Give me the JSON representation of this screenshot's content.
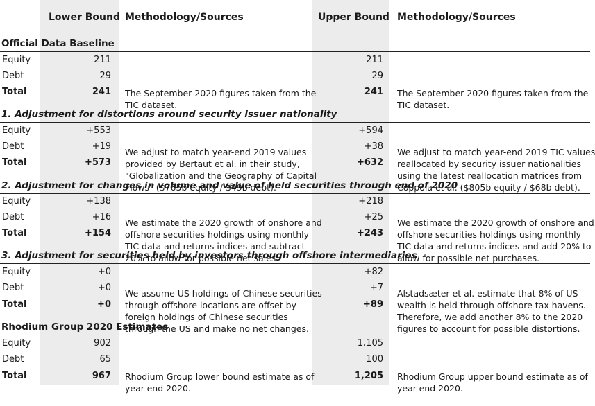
{
  "headers": {
    "lower": "Lower Bound",
    "method_left": "Methodology/Sources",
    "upper": "Upper Bound",
    "method_right": "Methodology/Sources"
  },
  "sections": [
    {
      "title": "Official Data Baseline",
      "rows": [
        {
          "label": "Equity",
          "lower": "211",
          "upper": "211"
        },
        {
          "label": "Debt",
          "lower": "29",
          "upper": "29"
        },
        {
          "label": "Total",
          "lower": "241",
          "upper": "241"
        }
      ],
      "desc_lower": [
        "The September 2020 figures taken from the",
        "TIC dataset."
      ],
      "desc_upper": [
        "The September 2020 figures taken from the",
        "TIC dataset."
      ]
    },
    {
      "title": "1. Adjustment for distortions around security issuer nationality",
      "rows": [
        {
          "label": "Equity",
          "lower": "+553",
          "upper": "+594"
        },
        {
          "label": "Debt",
          "lower": "+19",
          "upper": "+38"
        },
        {
          "label": "Total",
          "lower": "+573",
          "upper": "+632"
        }
      ],
      "desc_lower": [
        "We adjust to match year-end 2019 values",
        "provided by Bertaut et al. in their study,",
        "\"Globalization and the Geography of Capital",
        "Flows\" ($765b equity / $49b debt)."
      ],
      "desc_upper": [
        "We adjust to match year-end 2019 TIC values",
        "reallocated by security issuer nationalities",
        "using the latest reallocation matrices from",
        "Coppola et al. ($805b equity / $68b debt)."
      ]
    },
    {
      "title": "2. Adjustment for changes in volume and value of held securities through end of 2020",
      "rows": [
        {
          "label": "Equity",
          "lower": "+138",
          "upper": "+218"
        },
        {
          "label": "Debt",
          "lower": "+16",
          "upper": "+25"
        },
        {
          "label": "Total",
          "lower": "+154",
          "upper": "+243"
        }
      ],
      "desc_lower": [
        "We estimate the 2020 growth of onshore and",
        "offshore securities holdings using monthly",
        "TIC data and returns indices and subtract",
        "20% to allow for possible net sales."
      ],
      "desc_upper": [
        "We estimate the 2020 growth of onshore and",
        "offshore securities holdings using monthly",
        "TIC data and returns indices and add 20% to",
        "allow for possible net purchases."
      ]
    },
    {
      "title": "3. Adjustment for securities held by investors through offshore intermediaries",
      "rows": [
        {
          "label": "Equity",
          "lower": "+0",
          "upper": "+82"
        },
        {
          "label": "Debt",
          "lower": "+0",
          "upper": "+7"
        },
        {
          "label": "Total",
          "lower": "+0",
          "upper": "+89"
        }
      ],
      "desc_lower": [
        "We assume US holdings of Chinese securities",
        "through offshore locations are offset by",
        "foreign holdings of Chinese securities",
        "through the US and make no net changes."
      ],
      "desc_upper": [
        "Alstadsæter et al. estimate that 8% of US",
        "wealth is held through offshore tax havens.",
        "Therefore, we add another 8% to the 2020",
        "figures to account for possible distortions."
      ]
    },
    {
      "title": "Rhodium Group 2020 Estimates",
      "rows": [
        {
          "label": "Equity",
          "lower": "902",
          "upper": "1,105"
        },
        {
          "label": "Debt",
          "lower": "65",
          "upper": "100"
        },
        {
          "label": "Total",
          "lower": "967",
          "upper": "1,205"
        }
      ],
      "desc_lower": [
        "Rhodium Group lower bound estimate as of",
        "year-end 2020."
      ],
      "desc_upper": [
        "Rhodium Group upper bound estimate as of",
        "year-end 2020."
      ]
    }
  ]
}
